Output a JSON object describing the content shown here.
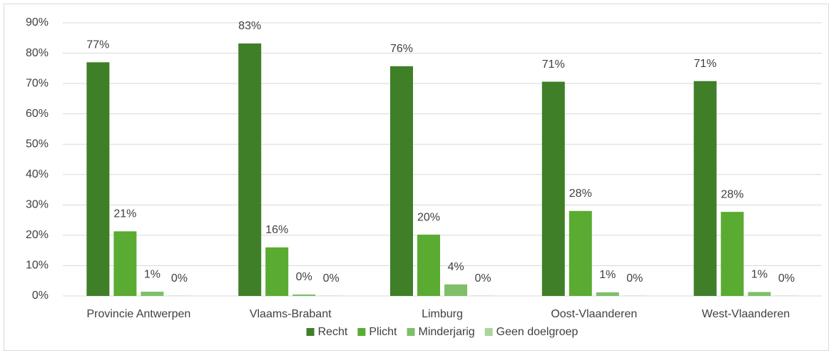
{
  "chart_data": {
    "type": "bar",
    "categories": [
      "Provincie Antwerpen",
      "Vlaams-Brabant",
      "Limburg",
      "Oost-Vlaanderen",
      "West-Vlaanderen"
    ],
    "series": [
      {
        "name": "Recht",
        "color": "#3f7f28",
        "values": [
          77.0,
          83.2,
          75.7,
          70.6,
          70.8
        ],
        "value_labels": [
          "77%",
          "83%",
          "76%",
          "71%",
          "71%"
        ]
      },
      {
        "name": "Plicht",
        "color": "#5aab32",
        "values": [
          21.3,
          16.0,
          20.2,
          28.0,
          27.7
        ],
        "value_labels": [
          "21%",
          "16%",
          "20%",
          "28%",
          "28%"
        ]
      },
      {
        "name": "Minderjarig",
        "color": "#7fbf6a",
        "values": [
          1.4,
          0.5,
          3.8,
          1.2,
          1.3
        ],
        "value_labels": [
          "1%",
          "0%",
          "4%",
          "1%",
          "1%"
        ]
      },
      {
        "name": "Geen doelgroep",
        "color": "#a9d59a",
        "values": [
          0.1,
          0.1,
          0.1,
          0.1,
          0.1
        ],
        "value_labels": [
          "0%",
          "0%",
          "0%",
          "0%",
          "0%"
        ]
      }
    ],
    "ylim": [
      0,
      90
    ],
    "yticks": [
      {
        "value": 0,
        "label": "0%"
      },
      {
        "value": 10,
        "label": "10%"
      },
      {
        "value": 20,
        "label": "20%"
      },
      {
        "value": 30,
        "label": "30%"
      },
      {
        "value": 40,
        "label": "40%"
      },
      {
        "value": 50,
        "label": "50%"
      },
      {
        "value": 60,
        "label": "60%"
      },
      {
        "value": 70,
        "label": "70%"
      },
      {
        "value": 80,
        "label": "80%"
      },
      {
        "value": 90,
        "label": "90%"
      }
    ],
    "grid": true,
    "legend": "bottom"
  }
}
